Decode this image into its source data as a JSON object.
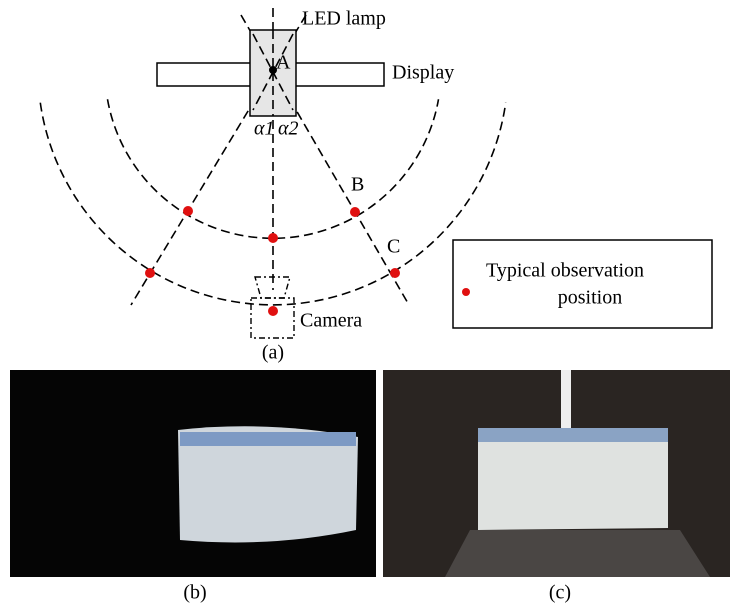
{
  "diagram": {
    "labels": {
      "lamp": "LED lamp",
      "display": "Display",
      "a": "A",
      "alpha1": "α1",
      "alpha2": "α2",
      "b": "B",
      "c": "C",
      "camera": "Camera"
    },
    "legend": [
      "Typical observation",
      "position"
    ],
    "captions": [
      "(a)",
      "(b)",
      "(c)"
    ]
  }
}
